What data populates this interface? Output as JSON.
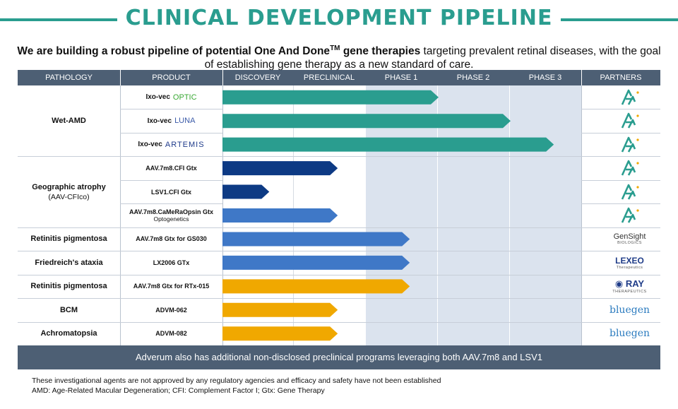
{
  "title": "CLINICAL DEVELOPMENT PIPELINE",
  "subtitle": {
    "bold_part": "We are building a robust pipeline of potential One And Done",
    "tm": "TM",
    "bold_part2": " gene therapies",
    "normal_part": " targeting prevalent retinal diseases, with the goal of establishing gene therapy as a new standard of care."
  },
  "columns": [
    "PATHOLOGY",
    "PRODUCT",
    "DISCOVERY",
    "PRECLINICAL",
    "PHASE 1",
    "PHASE 2",
    "PHASE 3",
    "PARTNERS"
  ],
  "colors": {
    "teal": "#2a9d8f",
    "navy": "#0d3a84",
    "blue": "#3f78c7",
    "gold": "#f0a800",
    "header": "#4d5f74"
  },
  "pathologies": [
    {
      "name": "Wet-AMD",
      "sub": "",
      "rows": 3
    },
    {
      "name": "Geographic atrophy",
      "sub": "(AAV-CFIco)",
      "rows": 3
    },
    {
      "name": "Retinitis pigmentosa",
      "sub": "",
      "rows": 1
    },
    {
      "name": "Friedreich's ataxia",
      "sub": "",
      "rows": 1
    },
    {
      "name": "Retinitis pigmentosa",
      "sub": "",
      "rows": 1
    },
    {
      "name": "BCM",
      "sub": "",
      "rows": 1
    },
    {
      "name": "Achromatopsia",
      "sub": "",
      "rows": 1
    }
  ],
  "chart_data": {
    "type": "bar",
    "title": "CLINICAL DEVELOPMENT PIPELINE",
    "stages": [
      "DISCOVERY",
      "PRECLINICAL",
      "PHASE 1",
      "PHASE 2",
      "PHASE 3"
    ],
    "value_unit": "stage progress (0 = start of Discovery, 5 = end of Phase 3)",
    "xlim": [
      0,
      5
    ],
    "bars": [
      {
        "product": "Ixo-vec",
        "brand": "OPTIC",
        "pathology": "Wet-AMD",
        "progress": 3.0,
        "color_key": "teal",
        "partner": "adverum"
      },
      {
        "product": "Ixo-vec",
        "brand": "LUNA",
        "pathology": "Wet-AMD",
        "progress": 4.0,
        "color_key": "teal",
        "partner": "adverum"
      },
      {
        "product": "Ixo-vec",
        "brand": "ARTEMIS",
        "pathology": "Wet-AMD",
        "progress": 4.6,
        "color_key": "teal",
        "partner": "adverum"
      },
      {
        "product": "AAV.7m8.CFI Gtx",
        "brand": "",
        "pathology": "Geographic atrophy",
        "progress": 1.6,
        "color_key": "navy",
        "partner": "adverum"
      },
      {
        "product": "LSV1.CFI Gtx",
        "brand": "",
        "pathology": "Geographic atrophy",
        "progress": 0.65,
        "color_key": "navy",
        "partner": "adverum"
      },
      {
        "product": "AAV.7m8.CaMeRaOpsin Gtx",
        "brand": "Optogenetics",
        "pathology": "Geographic atrophy",
        "progress": 1.6,
        "color_key": "blue",
        "partner": "adverum"
      },
      {
        "product": "AAV.7m8 Gtx for GS030",
        "brand": "",
        "pathology": "Retinitis pigmentosa",
        "progress": 2.6,
        "color_key": "blue",
        "partner": "gensight"
      },
      {
        "product": "LX2006 GTx",
        "brand": "",
        "pathology": "Friedreich's ataxia",
        "progress": 2.6,
        "color_key": "blue",
        "partner": "lexeo"
      },
      {
        "product": "AAV.7m8 Gtx for RTx-015",
        "brand": "",
        "pathology": "Retinitis pigmentosa",
        "progress": 2.6,
        "color_key": "gold",
        "partner": "ray"
      },
      {
        "product": "ADVM-062",
        "brand": "",
        "pathology": "BCM",
        "progress": 1.6,
        "color_key": "gold",
        "partner": "bluegen"
      },
      {
        "product": "ADVM-082",
        "brand": "",
        "pathology": "Achromatopsia",
        "progress": 1.6,
        "color_key": "gold",
        "partner": "bluegen"
      }
    ]
  },
  "partners": {
    "gensight": {
      "name": "GenSight",
      "sub": "BIOLOGICS"
    },
    "lexeo": {
      "name": "LEXEO",
      "sub": "Therapeutics"
    },
    "ray": {
      "name": "RAY",
      "sub": "THERAPEUTICS"
    },
    "bluegen": {
      "name": "bluegen",
      "sub": ""
    }
  },
  "footer_bar": "Adverum also has additional non-disclosed preclinical programs leveraging both AAV.7m8 and LSV1",
  "notes": [
    "These investigational agents are not approved by any regulatory agencies and efficacy and safety have not been established",
    "AMD: Age-Related Macular Degeneration; CFI: Complement Factor I; Gtx: Gene Therapy"
  ]
}
